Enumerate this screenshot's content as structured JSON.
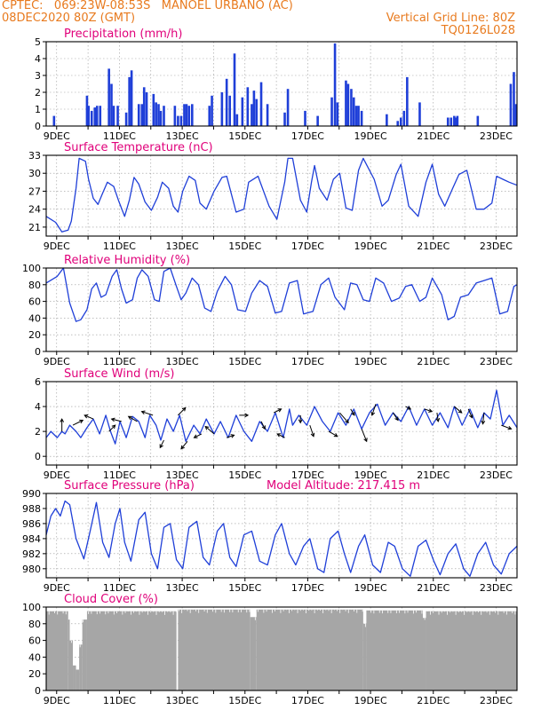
{
  "header": {
    "line1": "CPTEC:   069:23W-08:53S   MANOEL URBANO (AC)",
    "line2_left": "08DEC2020 80Z (GMT)",
    "line2_right": "Vertical Grid Line: 80Z",
    "line3_right": "TQ0126L028"
  },
  "colors": {
    "header": "#e87a1e",
    "panel_title": "#e0007a",
    "series": "#1f3fd8",
    "cloud": "#a6a6a6",
    "grid": "#9a9a9a"
  },
  "x_ticks": [
    "9DEC",
    "11DEC",
    "13DEC",
    "15DEC",
    "17DEC",
    "19DEC",
    "21DEC",
    "23DEC"
  ],
  "chart_data": [
    {
      "id": "precip",
      "type": "bar",
      "title": "Precipitation (mm/h)",
      "ylim": [
        0,
        5
      ],
      "yticks": [
        0,
        1,
        2,
        3,
        4,
        5
      ],
      "grid": true,
      "x_unit": "days since 08DEC2020 00Z (labels at 9DEC..23DEC)",
      "x": [
        0.25,
        1.3,
        1.35,
        1.45,
        1.55,
        1.62,
        1.72,
        2.0,
        2.08,
        2.15,
        2.28,
        2.55,
        2.65,
        2.72,
        2.95,
        3.05,
        3.12,
        3.2,
        3.42,
        3.5,
        3.58,
        3.65,
        3.75,
        4.1,
        4.2,
        4.3,
        4.4,
        4.47,
        4.55,
        4.65,
        5.2,
        5.28,
        5.6,
        5.75,
        5.85,
        6.0,
        6.08,
        6.25,
        6.42,
        6.55,
        6.62,
        6.7,
        6.85,
        7.05,
        7.6,
        7.7,
        8.25,
        8.65,
        9.1,
        9.2,
        9.28,
        9.55,
        9.62,
        9.72,
        9.8,
        9.88,
        9.95,
        10.05,
        10.85,
        11.2,
        11.3,
        11.4,
        11.5,
        11.9,
        12.8,
        12.9,
        13.0,
        13.05,
        13.1,
        13.75,
        14.8,
        14.9,
        14.97
      ],
      "values": [
        0.6,
        1.8,
        1.2,
        0.9,
        1.1,
        1.2,
        1.2,
        3.4,
        2.5,
        1.2,
        1.2,
        0.8,
        2.9,
        3.3,
        1.3,
        1.3,
        2.3,
        2.0,
        1.9,
        1.4,
        1.3,
        0.9,
        1.2,
        1.2,
        0.6,
        0.6,
        1.3,
        1.3,
        1.2,
        1.3,
        1.2,
        1.8,
        2.0,
        2.8,
        1.8,
        4.3,
        0.7,
        1.7,
        2.3,
        1.3,
        2.1,
        1.6,
        2.6,
        1.3,
        0.8,
        2.2,
        0.9,
        0.6,
        1.7,
        4.9,
        1.4,
        2.7,
        2.5,
        2.2,
        1.7,
        1.2,
        1.2,
        0.9,
        0.7,
        0.3,
        0.5,
        0.9,
        2.9,
        1.4,
        0.5,
        0.5,
        0.6,
        0.5,
        0.6,
        0.6,
        2.5,
        3.2,
        1.3
      ]
    },
    {
      "id": "temp",
      "type": "line",
      "title": "Surface Temperature (nC)",
      "ylim": [
        19.5,
        33
      ],
      "yticks": [
        21,
        24,
        27,
        30,
        33
      ],
      "grid": true,
      "x": [
        0,
        0.3,
        0.5,
        0.7,
        0.8,
        0.95,
        1.05,
        1.25,
        1.35,
        1.5,
        1.65,
        1.8,
        1.95,
        2.15,
        2.3,
        2.5,
        2.65,
        2.8,
        2.95,
        3.15,
        3.35,
        3.55,
        3.7,
        3.9,
        4.05,
        4.2,
        4.35,
        4.55,
        4.75,
        4.9,
        5.1,
        5.35,
        5.6,
        5.75,
        6.05,
        6.3,
        6.45,
        6.75,
        7.1,
        7.35,
        7.6,
        7.7,
        7.85,
        8.1,
        8.3,
        8.45,
        8.55,
        8.7,
        8.95,
        9.15,
        9.35,
        9.55,
        9.75,
        9.95,
        10.1,
        10.45,
        10.7,
        10.9,
        11.15,
        11.3,
        11.55,
        11.85,
        12.1,
        12.3,
        12.5,
        12.7,
        12.95,
        13.15,
        13.4,
        13.7,
        13.95,
        14.2,
        14.35,
        14.55,
        14.75,
        15.0
      ],
      "values": [
        22.8,
        21.8,
        20.2,
        20.5,
        22.0,
        27.5,
        32.5,
        32.0,
        29.0,
        25.8,
        24.8,
        26.7,
        28.5,
        27.8,
        25.5,
        22.8,
        25.5,
        29.3,
        28.2,
        25.2,
        23.8,
        26.0,
        28.5,
        27.5,
        24.5,
        23.5,
        27.0,
        29.5,
        28.8,
        25.0,
        24.0,
        27.0,
        29.3,
        29.5,
        23.5,
        24.0,
        28.5,
        29.5,
        24.5,
        22.3,
        28.5,
        32.5,
        32.5,
        25.5,
        23.5,
        28.5,
        31.3,
        27.5,
        25.5,
        29.0,
        30.0,
        24.2,
        23.8,
        30.5,
        32.5,
        29.0,
        24.5,
        25.5,
        29.8,
        31.5,
        24.5,
        22.8,
        28.5,
        31.5,
        26.5,
        24.5,
        27.5,
        29.8,
        30.5,
        24.0,
        24.0,
        25.0,
        29.5,
        29.0,
        28.5,
        28.0
      ]
    },
    {
      "id": "rh",
      "type": "line",
      "title": "Relative Humidity (%)",
      "ylim": [
        0,
        100
      ],
      "yticks": [
        0,
        20,
        40,
        60,
        80,
        100
      ],
      "grid": true,
      "x": [
        0,
        0.35,
        0.55,
        0.75,
        0.95,
        1.1,
        1.3,
        1.45,
        1.6,
        1.75,
        1.9,
        2.1,
        2.25,
        2.4,
        2.55,
        2.75,
        2.9,
        3.05,
        3.25,
        3.45,
        3.6,
        3.75,
        3.95,
        4.15,
        4.3,
        4.45,
        4.65,
        4.85,
        5.05,
        5.25,
        5.45,
        5.7,
        5.9,
        6.1,
        6.35,
        6.55,
        6.8,
        7.05,
        7.3,
        7.5,
        7.75,
        8.0,
        8.2,
        8.5,
        8.75,
        9.0,
        9.2,
        9.5,
        9.7,
        9.9,
        10.1,
        10.3,
        10.5,
        10.75,
        11.0,
        11.25,
        11.45,
        11.65,
        11.9,
        12.1,
        12.3,
        12.6,
        12.8,
        13.0,
        13.2,
        13.45,
        13.7,
        13.95,
        14.2,
        14.45,
        14.7,
        14.9,
        15.0
      ],
      "values": [
        82,
        90,
        100,
        58,
        36,
        38,
        50,
        75,
        82,
        65,
        68,
        90,
        98,
        75,
        58,
        62,
        88,
        98,
        90,
        62,
        60,
        96,
        100,
        78,
        62,
        70,
        88,
        80,
        52,
        48,
        72,
        90,
        80,
        50,
        48,
        70,
        85,
        78,
        46,
        48,
        82,
        85,
        45,
        48,
        80,
        88,
        65,
        50,
        82,
        80,
        62,
        60,
        88,
        82,
        60,
        64,
        78,
        80,
        60,
        65,
        88,
        68,
        38,
        42,
        65,
        68,
        82,
        85,
        88,
        45,
        48,
        78,
        80
      ]
    },
    {
      "id": "wind",
      "type": "line",
      "title": "Surface Wind (m/s)",
      "ylim": [
        -0.7,
        6
      ],
      "yticks": [
        0,
        2,
        4,
        6
      ],
      "grid": true,
      "x": [
        0,
        0.15,
        0.35,
        0.5,
        0.6,
        0.75,
        0.95,
        1.1,
        1.3,
        1.5,
        1.7,
        1.9,
        2.05,
        2.2,
        2.35,
        2.55,
        2.75,
        2.95,
        3.15,
        3.3,
        3.5,
        3.65,
        3.85,
        4.05,
        4.25,
        4.45,
        4.7,
        4.9,
        5.1,
        5.35,
        5.55,
        5.8,
        6.05,
        6.3,
        6.55,
        6.8,
        7.05,
        7.3,
        7.55,
        7.75,
        7.85,
        8.05,
        8.3,
        8.55,
        8.8,
        9.05,
        9.3,
        9.55,
        9.8,
        10.05,
        10.3,
        10.55,
        10.8,
        11.05,
        11.3,
        11.55,
        11.8,
        12.05,
        12.3,
        12.55,
        12.8,
        13.0,
        13.25,
        13.5,
        13.75,
        13.95,
        14.15,
        14.35,
        14.55,
        14.75,
        15.0
      ],
      "values": [
        1.5,
        2.0,
        1.5,
        2.0,
        1.8,
        2.5,
        2.0,
        1.5,
        2.3,
        3.0,
        1.8,
        3.3,
        2.0,
        1.0,
        2.8,
        1.5,
        3.2,
        2.8,
        1.5,
        3.3,
        2.5,
        1.3,
        3.0,
        2.0,
        3.3,
        1.2,
        2.5,
        1.8,
        3.0,
        1.8,
        2.8,
        1.5,
        3.3,
        2.0,
        1.2,
        2.8,
        2.0,
        3.5,
        1.5,
        3.8,
        2.5,
        3.3,
        2.5,
        4.0,
        2.8,
        2.0,
        3.5,
        2.5,
        3.8,
        2.2,
        3.5,
        4.2,
        2.5,
        3.5,
        2.8,
        4.0,
        2.5,
        3.8,
        2.5,
        3.5,
        2.3,
        4.0,
        2.5,
        3.8,
        2.3,
        3.5,
        3.0,
        5.3,
        2.5,
        3.3,
        2.3
      ],
      "arrows": [
        {
          "x": 0.5,
          "dx": 0,
          "dy": 1
        },
        {
          "x": 0.85,
          "dx": 0.8,
          "dy": 0.4
        },
        {
          "x": 1.5,
          "dx": -0.7,
          "dy": 0.3
        },
        {
          "x": 2.0,
          "dx": 0.5,
          "dy": 0.5
        },
        {
          "x": 2.4,
          "dx": -0.8,
          "dy": 0.2
        },
        {
          "x": 2.9,
          "dx": -0.7,
          "dy": 0.4
        },
        {
          "x": 3.4,
          "dx": -0.9,
          "dy": 0.3
        },
        {
          "x": 3.75,
          "dx": -0.3,
          "dy": -0.6
        },
        {
          "x": 4.2,
          "dx": 0.6,
          "dy": 0.6
        },
        {
          "x": 4.5,
          "dx": -0.5,
          "dy": -0.6
        },
        {
          "x": 4.95,
          "dx": -0.6,
          "dy": -0.3
        },
        {
          "x": 5.35,
          "dx": -0.7,
          "dy": 0.6
        },
        {
          "x": 5.75,
          "dx": 0.6,
          "dy": 0.2
        },
        {
          "x": 6.15,
          "dx": 0.7,
          "dy": 0
        },
        {
          "x": 6.85,
          "dx": 0.3,
          "dy": -0.6
        },
        {
          "x": 7.25,
          "dx": 0.6,
          "dy": 0.3
        },
        {
          "x": 7.6,
          "dx": -0.6,
          "dy": 0.3
        },
        {
          "x": 8.1,
          "dx": 0,
          "dy": -0.6
        },
        {
          "x": 8.4,
          "dx": 0.3,
          "dy": -0.9
        },
        {
          "x": 9.0,
          "dx": 0.7,
          "dy": -0.4
        },
        {
          "x": 9.35,
          "dx": 0.7,
          "dy": -0.8
        },
        {
          "x": 9.7,
          "dx": 0.3,
          "dy": -0.5
        },
        {
          "x": 10.05,
          "dx": 0.4,
          "dy": -1.0
        },
        {
          "x": 10.5,
          "dx": -0.3,
          "dy": -0.9
        },
        {
          "x": 11.05,
          "dx": 0.4,
          "dy": -0.6
        },
        {
          "x": 11.45,
          "dx": 0.4,
          "dy": -0.2
        },
        {
          "x": 12.05,
          "dx": 0.6,
          "dy": -0.2
        },
        {
          "x": 12.45,
          "dx": 0.1,
          "dy": -0.7
        },
        {
          "x": 13.0,
          "dx": 0.6,
          "dy": -0.5
        },
        {
          "x": 13.45,
          "dx": 0.3,
          "dy": -0.7
        },
        {
          "x": 13.95,
          "dx": -0.1,
          "dy": -0.9
        },
        {
          "x": 14.5,
          "dx": 0.8,
          "dy": -0.3
        }
      ]
    },
    {
      "id": "press",
      "type": "line",
      "title": "Surface Pressure (hPa)",
      "annotation": "Model Altitude: 217.415 m",
      "ylim": [
        978.8,
        990
      ],
      "yticks": [
        980,
        982,
        984,
        986,
        988,
        990
      ],
      "grid": true,
      "x": [
        0,
        0.15,
        0.3,
        0.45,
        0.6,
        0.75,
        0.95,
        1.2,
        1.4,
        1.6,
        1.8,
        2.0,
        2.2,
        2.35,
        2.5,
        2.7,
        2.95,
        3.15,
        3.35,
        3.55,
        3.75,
        3.95,
        4.15,
        4.35,
        4.55,
        4.8,
        5.0,
        5.2,
        5.45,
        5.65,
        5.85,
        6.05,
        6.3,
        6.55,
        6.8,
        7.05,
        7.3,
        7.5,
        7.75,
        7.95,
        8.2,
        8.4,
        8.65,
        8.85,
        9.05,
        9.3,
        9.5,
        9.7,
        9.95,
        10.15,
        10.4,
        10.65,
        10.9,
        11.1,
        11.35,
        11.6,
        11.85,
        12.1,
        12.35,
        12.55,
        12.8,
        13.05,
        13.3,
        13.5,
        13.75,
        14.0,
        14.25,
        14.5,
        14.75,
        15.0
      ],
      "values": [
        984.5,
        987,
        988,
        987,
        989,
        988.5,
        984,
        981.3,
        985,
        988.8,
        983.5,
        981.5,
        986,
        988,
        983.5,
        981,
        986.5,
        987.5,
        982,
        980,
        985.5,
        986,
        981.2,
        980,
        985.5,
        986.3,
        981.5,
        980.5,
        985,
        986,
        981.5,
        980.3,
        984.5,
        985,
        981,
        980.5,
        984.5,
        986,
        982,
        980.5,
        983,
        984,
        980,
        979.5,
        984,
        985,
        982,
        979.5,
        983,
        984.5,
        980.5,
        979.5,
        983.5,
        983,
        980,
        979,
        983,
        983.8,
        981,
        979.2,
        982,
        983.3,
        980,
        979,
        982,
        983.5,
        980.5,
        979.3,
        982,
        983
      ]
    },
    {
      "id": "cloud",
      "type": "bar",
      "title": "Cloud Cover (%)",
      "ylim": [
        0,
        100
      ],
      "yticks": [
        0,
        20,
        40,
        60,
        80,
        100
      ],
      "grid": true,
      "segments": [
        {
          "x0": 0,
          "x1": 0.7,
          "value": 95
        },
        {
          "x0": 0.7,
          "x1": 0.75,
          "value": 85
        },
        {
          "x0": 0.75,
          "x1": 0.85,
          "value": 60
        },
        {
          "x0": 0.85,
          "x1": 0.95,
          "value": 30
        },
        {
          "x0": 0.95,
          "x1": 1.05,
          "value": 25
        },
        {
          "x0": 1.05,
          "x1": 1.15,
          "value": 55
        },
        {
          "x0": 1.15,
          "x1": 1.3,
          "value": 85
        },
        {
          "x0": 1.3,
          "x1": 4.15,
          "value": 95
        },
        {
          "x0": 4.15,
          "x1": 4.2,
          "value": 0
        },
        {
          "x0": 4.2,
          "x1": 6.5,
          "value": 97
        },
        {
          "x0": 6.5,
          "x1": 6.7,
          "value": 88
        },
        {
          "x0": 6.7,
          "x1": 10.1,
          "value": 97
        },
        {
          "x0": 10.1,
          "x1": 10.2,
          "value": 80
        },
        {
          "x0": 10.2,
          "x1": 12.0,
          "value": 96
        },
        {
          "x0": 12.0,
          "x1": 12.1,
          "value": 87
        },
        {
          "x0": 12.1,
          "x1": 15.0,
          "value": 95
        }
      ]
    }
  ]
}
